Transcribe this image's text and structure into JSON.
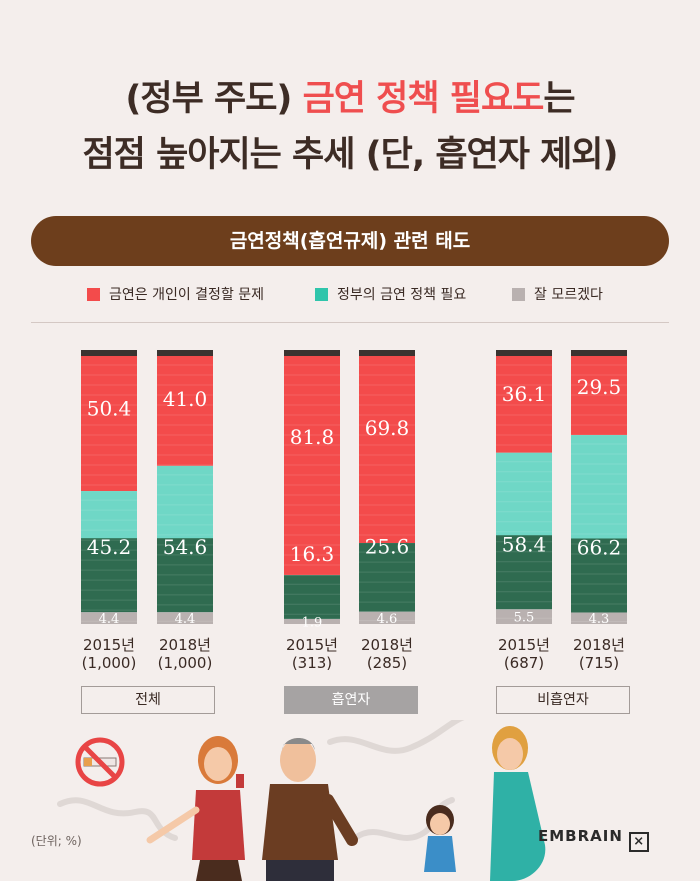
{
  "title": {
    "line1_pre": "(정부 주도) ",
    "line1_highlight": "금연 정책 필요도",
    "line1_post": "는",
    "line2": "점점 높아지는 추세 (단, 흡연자 제외)"
  },
  "banner": "금연정책(흡연규제) 관련 태도",
  "colors": {
    "personal": "#f34b4b",
    "government": "#6fd7c6",
    "government_dark": "#2f6b50",
    "unknown": "#b9b1b0",
    "banner": "#6d3e1c"
  },
  "chart_data": {
    "type": "bar",
    "stacked": true,
    "categories": [
      "2015년 (1,000)",
      "2018년 (1,000)",
      "2015년 (313)",
      "2018년 (285)",
      "2015년 (687)",
      "2018년 (715)"
    ],
    "groups": [
      {
        "label": "전체",
        "bars": [
          0,
          1
        ]
      },
      {
        "label": "흡연자",
        "bars": [
          2,
          3
        ]
      },
      {
        "label": "비흡연자",
        "bars": [
          4,
          5
        ]
      }
    ],
    "series": [
      {
        "name": "금연은 개인이 결정할 문제",
        "values": [
          50.4,
          41.0,
          81.8,
          69.8,
          36.1,
          29.5
        ],
        "labels": [
          "50.4",
          "41.0",
          "81.8",
          "69.8",
          "36.1",
          "29.5"
        ]
      },
      {
        "name": "정부의 금연 정책 필요",
        "values": [
          45.2,
          54.6,
          16.3,
          25.6,
          58.4,
          66.2
        ],
        "labels": [
          "45.2",
          "54.6",
          "16.3",
          "25.6",
          "58.4",
          "66.2"
        ]
      },
      {
        "name": "잘 모르겠다",
        "values": [
          4.4,
          4.4,
          1.9,
          4.6,
          5.5,
          4.3
        ],
        "labels": [
          "4.4",
          "4.4",
          "1.9",
          "4.6",
          "5.5",
          "4.3"
        ]
      }
    ],
    "years": [
      "2015년",
      "2018년",
      "2015년",
      "2018년",
      "2015년",
      "2018년"
    ],
    "samples": [
      "(1,000)",
      "(1,000)",
      "(313)",
      "(285)",
      "(687)",
      "(715)"
    ],
    "ylim": [
      0,
      100
    ],
    "legend_position": "top"
  },
  "unit_note": "(단위; %)",
  "brand": "EMBRAIN"
}
